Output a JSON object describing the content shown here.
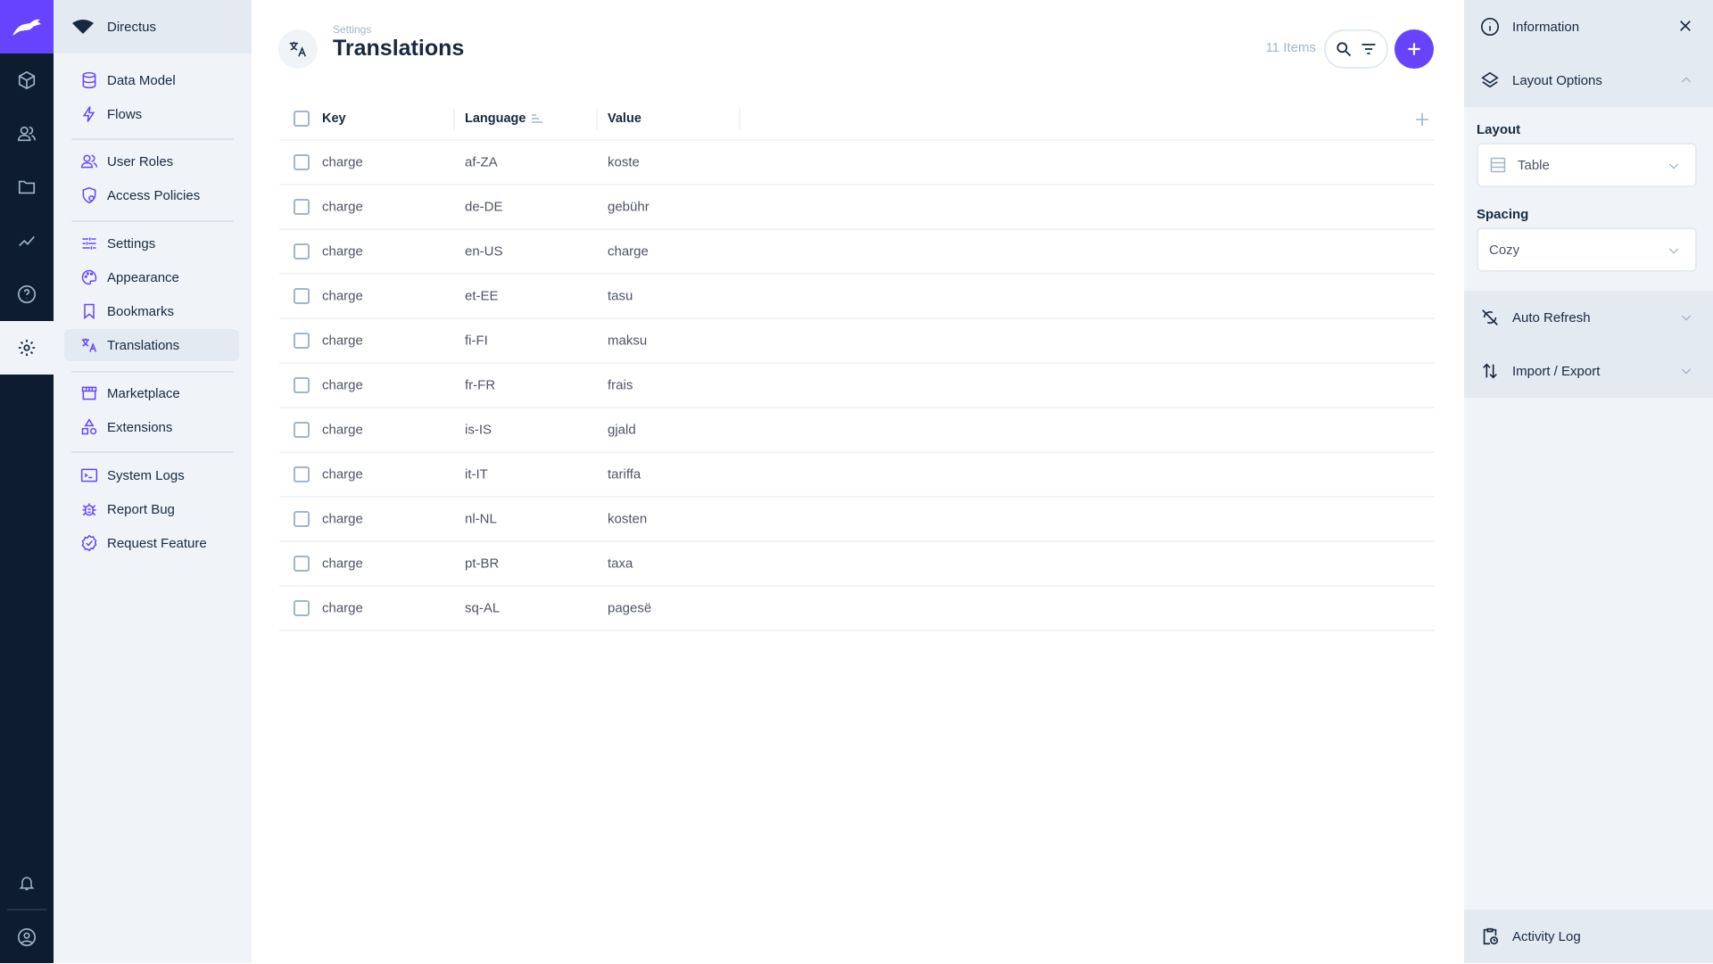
{
  "app": {
    "project_name": "Directus",
    "accent": "#6644ff"
  },
  "rail": {
    "items": [
      "content",
      "user-directory",
      "files",
      "insights",
      "help",
      "settings"
    ],
    "active": "settings"
  },
  "nav": {
    "items": [
      {
        "label": "Data Model",
        "icon": "database-icon"
      },
      {
        "label": "Flows",
        "icon": "bolt-icon"
      },
      {
        "label": "User Roles",
        "icon": "users-icon"
      },
      {
        "label": "Access Policies",
        "icon": "shield-icon"
      },
      {
        "label": "Settings",
        "icon": "sliders-icon"
      },
      {
        "label": "Appearance",
        "icon": "palette-icon"
      },
      {
        "label": "Bookmarks",
        "icon": "bookmark-icon"
      },
      {
        "label": "Translations",
        "icon": "translate-icon",
        "active": true
      },
      {
        "label": "Marketplace",
        "icon": "store-icon"
      },
      {
        "label": "Extensions",
        "icon": "shapes-icon"
      },
      {
        "label": "System Logs",
        "icon": "terminal-icon"
      },
      {
        "label": "Report Bug",
        "icon": "bug-icon"
      },
      {
        "label": "Request Feature",
        "icon": "verified-icon"
      }
    ]
  },
  "header": {
    "breadcrumb": "Settings",
    "title": "Translations",
    "item_count": "11 Items"
  },
  "table": {
    "columns": [
      "Key",
      "Language",
      "Value"
    ],
    "sorted_column": "Language",
    "rows": [
      [
        "charge",
        "af-ZA",
        "koste"
      ],
      [
        "charge",
        "de-DE",
        "gebühr"
      ],
      [
        "charge",
        "en-US",
        "charge"
      ],
      [
        "charge",
        "et-EE",
        "tasu"
      ],
      [
        "charge",
        "fi-FI",
        "maksu"
      ],
      [
        "charge",
        "fr-FR",
        "frais"
      ],
      [
        "charge",
        "is-IS",
        "gjald"
      ],
      [
        "charge",
        "it-IT",
        "tariffa"
      ],
      [
        "charge",
        "nl-NL",
        "kosten"
      ],
      [
        "charge",
        "pt-BR",
        "taxa"
      ],
      [
        "charge",
        "sq-AL",
        "pagesë"
      ]
    ]
  },
  "sidebar": {
    "information": "Information",
    "layout_options": "Layout Options",
    "layout_label": "Layout",
    "layout_value": "Table",
    "spacing_label": "Spacing",
    "spacing_value": "Cozy",
    "auto_refresh": "Auto Refresh",
    "import_export": "Import / Export",
    "activity_log": "Activity Log"
  }
}
